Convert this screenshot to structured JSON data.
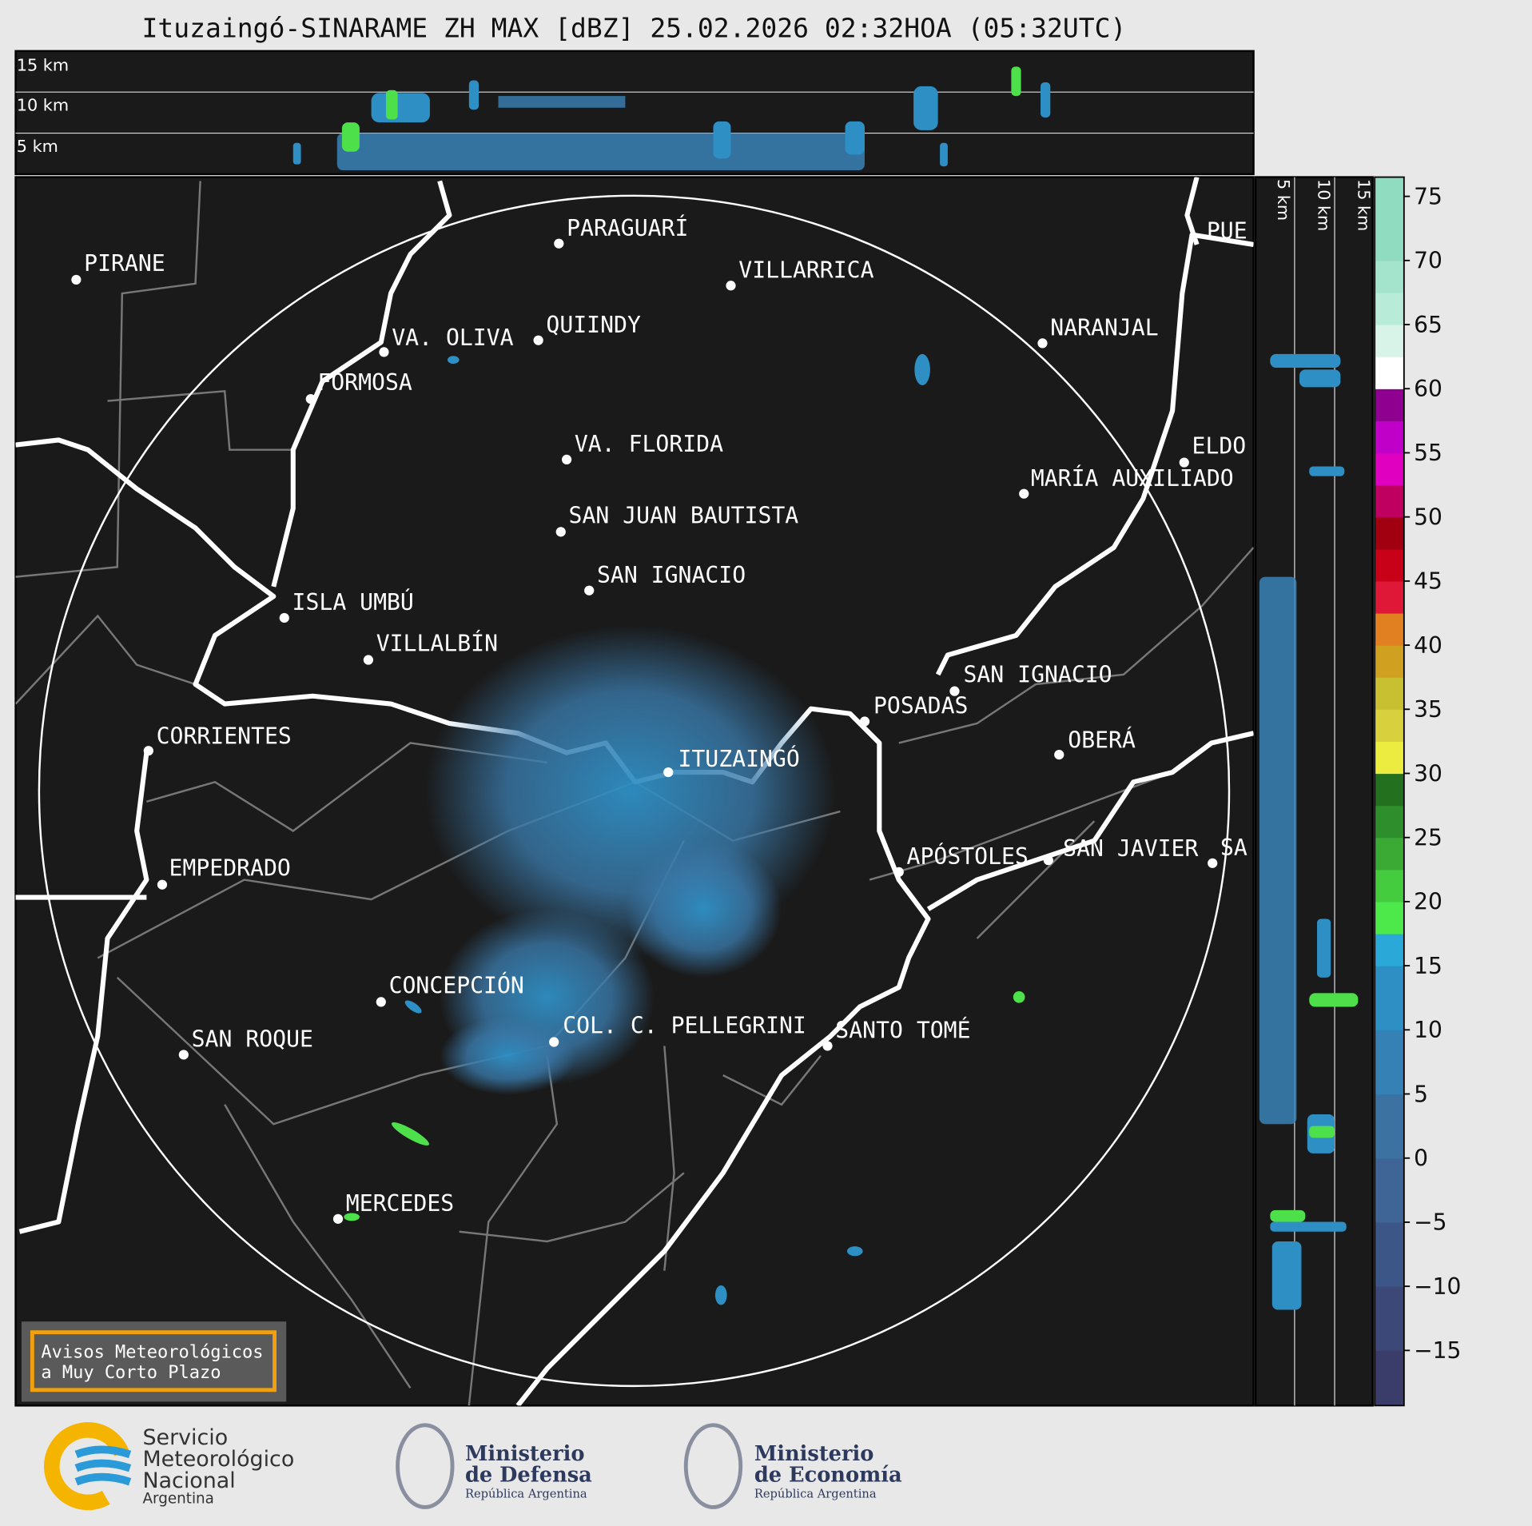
{
  "title": "Ituzaingó-SINARAME ZH MAX [dBZ] 25.02.2026 02:32HOA (05:32UTC)",
  "top_panel": {
    "height_labels": [
      "15 km",
      "10 km",
      "5 km"
    ]
  },
  "side_panel": {
    "height_labels": [
      "5 km",
      "10 km",
      "15 km"
    ]
  },
  "cities": [
    "PUE",
    "PIRANE",
    "PARAGUARÍ",
    "VILLARRICA",
    "VA. OLIVA",
    "QUIINDY",
    "NARANJAL",
    "FORMOSA",
    "VA. FLORIDA",
    "ELDO",
    "MARÍA AUXILIADO",
    "SAN JUAN BAUTISTA",
    "SAN IGNACIO",
    "ISLA UMBÚ",
    "VILLALBÍN",
    "SAN IGNACIO",
    "POSADAS",
    "CORRIENTES",
    "ITUZAINGÓ",
    "OBERÁ",
    "EMPEDRADO",
    "APÓSTOLES",
    "SAN JAVIER",
    "SA",
    "CONCEPCIÓN",
    "COL. C. PELLEGRINI",
    "SANTO TOMÉ",
    "SAN ROQUE",
    "MERCEDES"
  ],
  "colorbar": {
    "lim": [
      -19.3,
      76.5
    ],
    "ticks": [
      75,
      70,
      65,
      60,
      55,
      50,
      45,
      40,
      35,
      30,
      25,
      20,
      15,
      10,
      5,
      0,
      {
        "value": -5,
        "label": "−5"
      },
      {
        "value": -10,
        "label": "−10"
      },
      {
        "value": -15,
        "label": "−15"
      }
    ]
  },
  "warning": {
    "lines": [
      "Avisos Meteorológicos",
      "a Muy Corto Plazo"
    ]
  },
  "footer": {
    "smn": [
      "Servicio",
      "Meteorológico",
      "Nacional",
      "Argentina"
    ],
    "defensa": [
      "Ministerio",
      "de Defensa",
      "República Argentina"
    ],
    "economia": [
      "Ministerio",
      "de Economía",
      "República Argentina"
    ]
  }
}
